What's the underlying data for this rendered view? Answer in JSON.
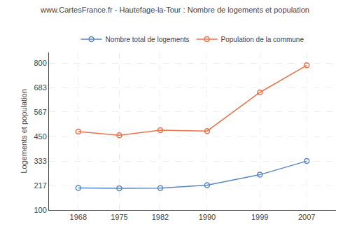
{
  "chart_data": {
    "type": "line",
    "title": "www.CartesFrance.fr - Hautefage-la-Tour : Nombre de logements et population",
    "ylabel": "Logements et population",
    "x": [
      1968,
      1975,
      1982,
      1990,
      1999,
      2007
    ],
    "series": [
      {
        "name": "Nombre total de logements",
        "color": "#5a86c0",
        "marker": "circle-open",
        "values": [
          205,
          203,
          204,
          218,
          268,
          333
        ]
      },
      {
        "name": "Population de la commune",
        "color": "#e8734a",
        "marker": "circle-open",
        "values": [
          473,
          456,
          480,
          476,
          660,
          789
        ]
      }
    ],
    "xlim": [
      1963,
      2012
    ],
    "xticks": [
      1968,
      1975,
      1982,
      1990,
      1999,
      2007
    ],
    "ylim": [
      100,
      850
    ],
    "yticks": [
      100,
      217,
      333,
      450,
      567,
      683,
      800
    ],
    "grid": true,
    "legend": "top"
  }
}
